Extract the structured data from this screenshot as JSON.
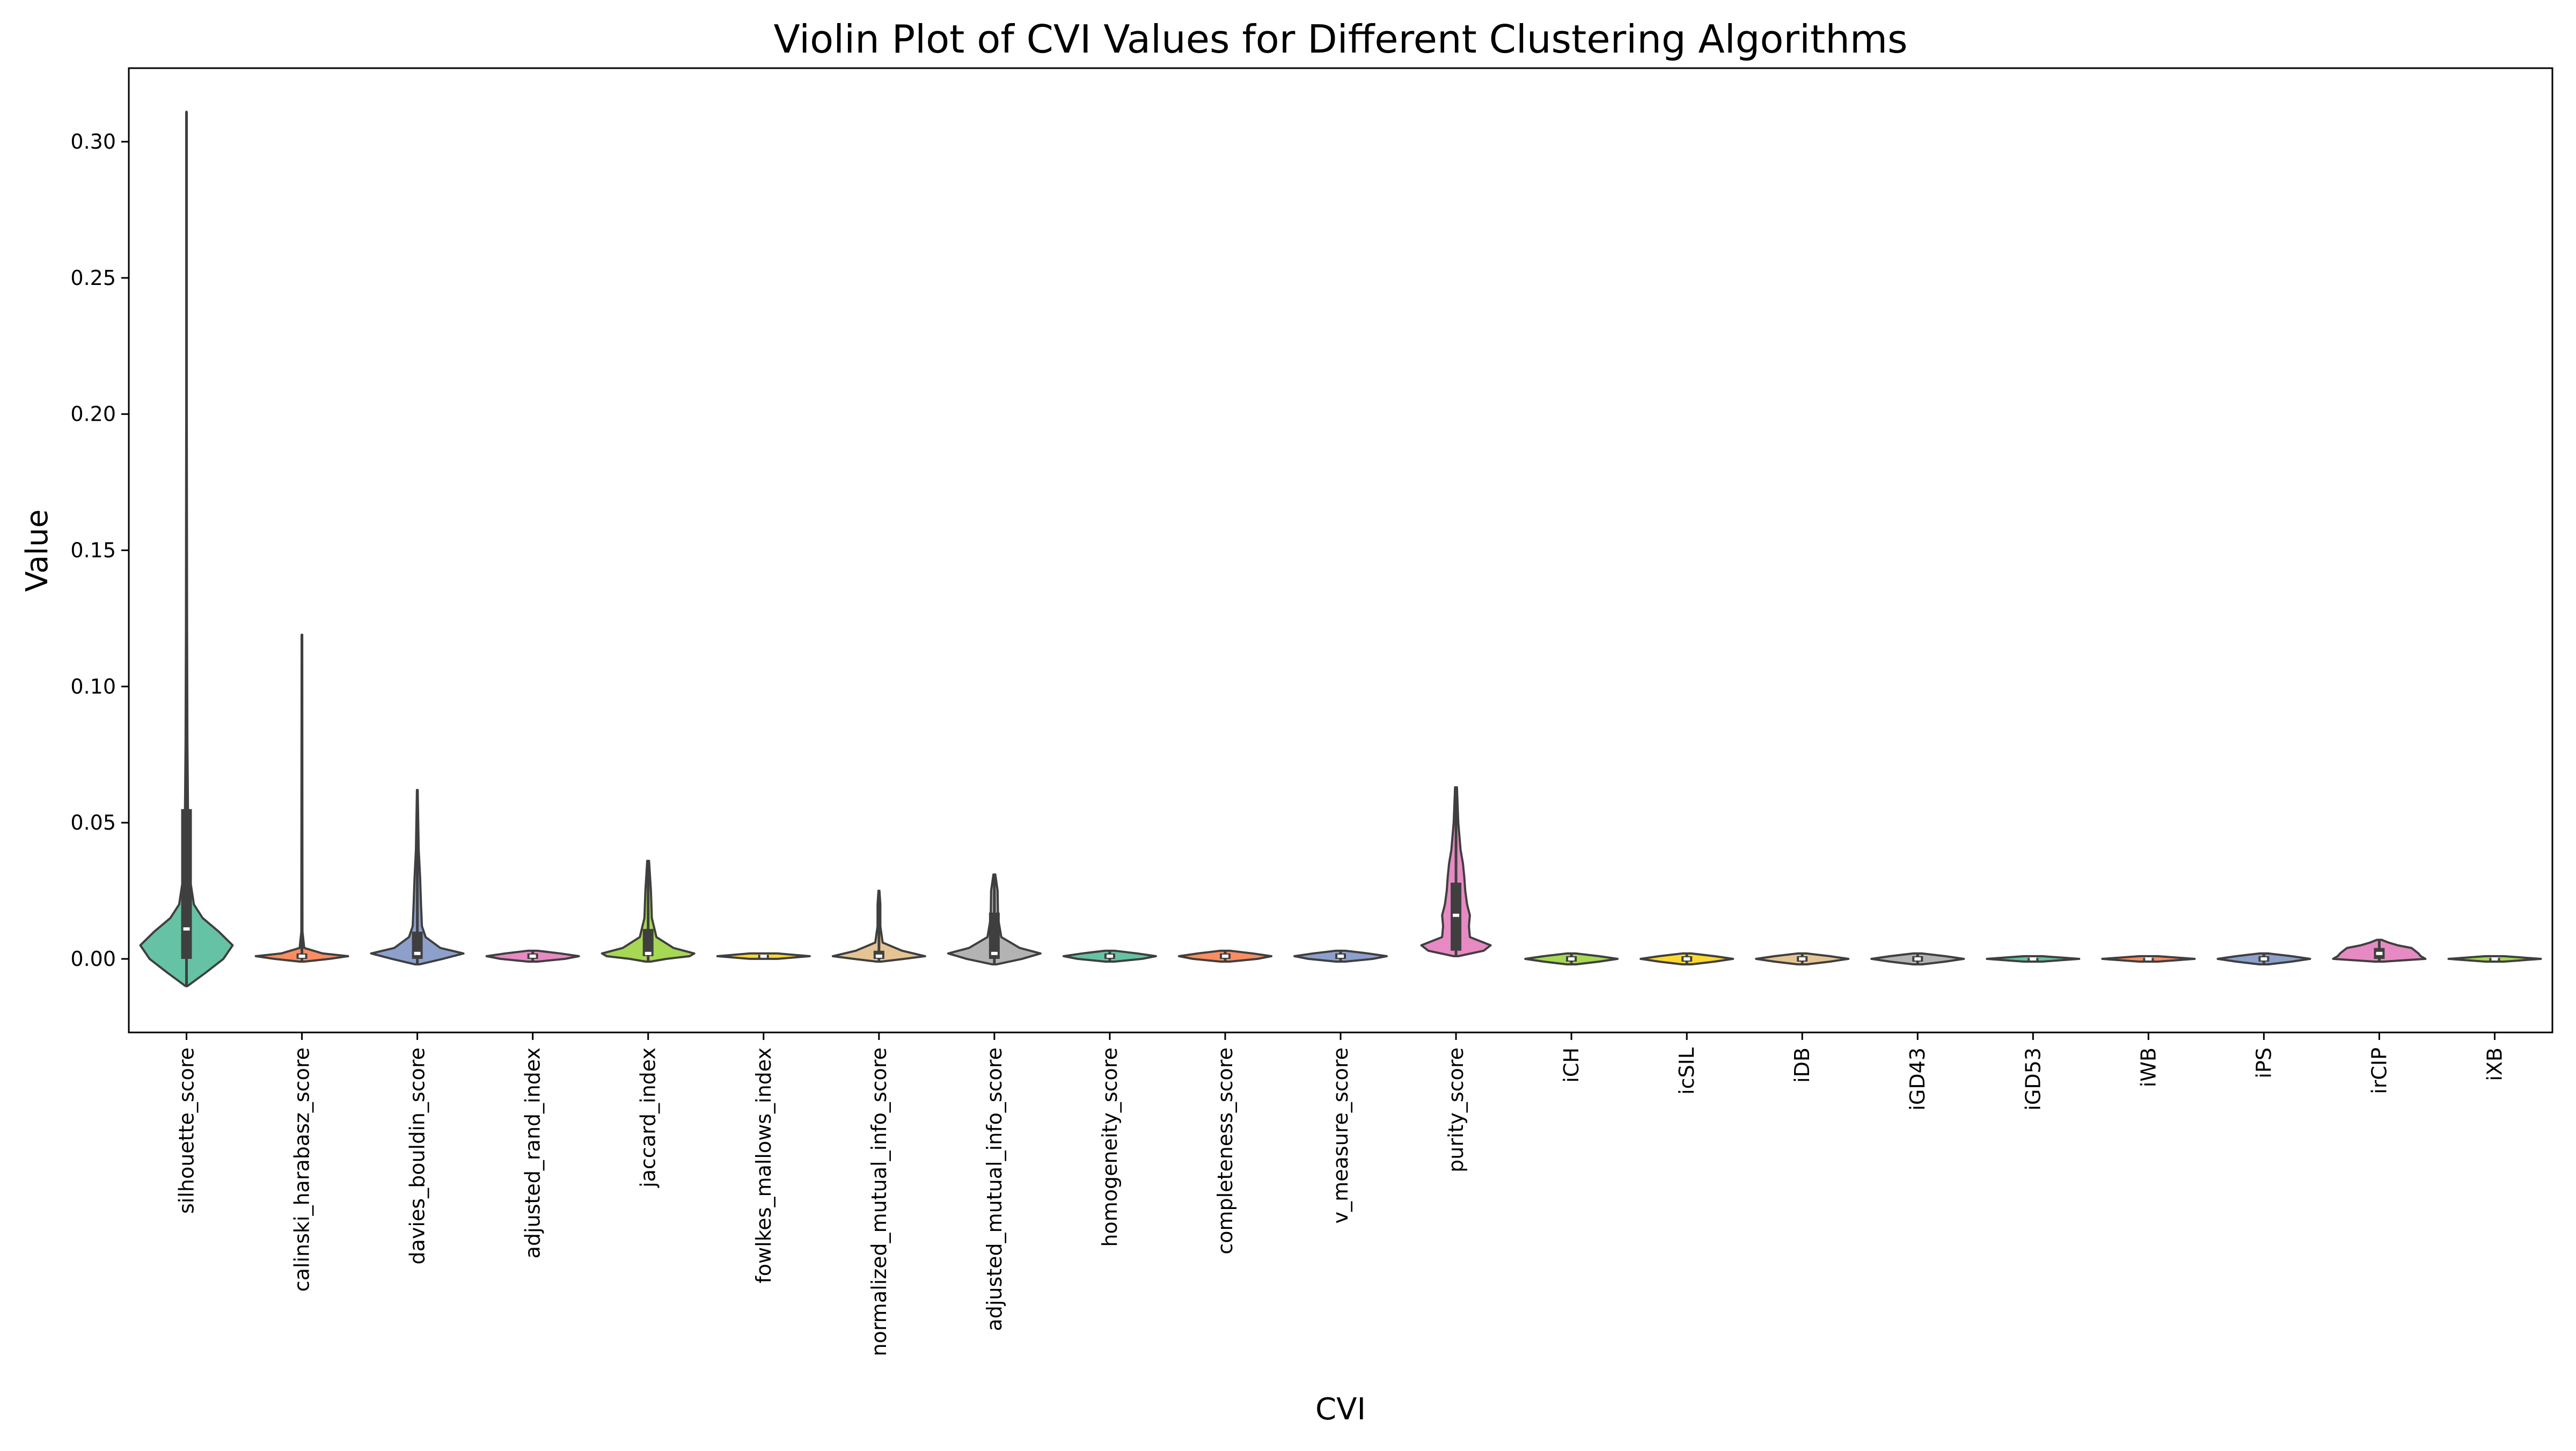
{
  "chart_data": {
    "type": "violin",
    "title": "Violin Plot of CVI Values for Different Clustering Algorithms",
    "xlabel": "CVI",
    "ylabel": "Value",
    "ylim": [
      -0.027,
      0.327
    ],
    "yticks": [
      0.0,
      0.05,
      0.1,
      0.15,
      0.2,
      0.25,
      0.3
    ],
    "ytick_labels": [
      "0.00",
      "0.05",
      "0.10",
      "0.15",
      "0.20",
      "0.25",
      "0.30"
    ],
    "grid": false,
    "legend": "none",
    "categories": [
      "silhouette_score",
      "calinski_harabasz_score",
      "davies_bouldin_score",
      "adjusted_rand_index",
      "jaccard_index",
      "fowlkes_mallows_index",
      "normalized_mutual_info_score",
      "adjusted_mutual_info_score",
      "homogeneity_score",
      "completeness_score",
      "v_measure_score",
      "purity_score",
      "iCH",
      "icSIL",
      "iDB",
      "iGD43",
      "iGD53",
      "iWB",
      "iPS",
      "irCIP",
      "iXB"
    ],
    "colors": [
      "#66c2a5",
      "#fc8d62",
      "#8da0cb",
      "#e78ac3",
      "#a6d854",
      "#ffd92f",
      "#e5c494",
      "#b3b3b3",
      "#66c2a5",
      "#fc8d62",
      "#8da0cb",
      "#e78ac3",
      "#a6d854",
      "#ffd92f",
      "#e5c494",
      "#b3b3b3",
      "#66c2a5",
      "#fc8d62",
      "#8da0cb",
      "#e78ac3",
      "#a6d854"
    ],
    "series": [
      {
        "min": -0.01,
        "max": 0.311,
        "q1": 0.0,
        "median": 0.011,
        "q3": 0.055,
        "profile": [
          [
            -0.01,
            0.02
          ],
          [
            -0.005,
            0.42
          ],
          [
            0.0,
            0.8
          ],
          [
            0.005,
            1.0
          ],
          [
            0.01,
            0.7
          ],
          [
            0.015,
            0.35
          ],
          [
            0.02,
            0.16
          ],
          [
            0.03,
            0.07
          ],
          [
            0.05,
            0.035
          ],
          [
            0.08,
            0.02
          ],
          [
            0.12,
            0.012
          ],
          [
            0.2,
            0.006
          ],
          [
            0.311,
            0.002
          ]
        ]
      },
      {
        "min": -0.001,
        "max": 0.119,
        "q1": 0.0,
        "median": 0.001,
        "q3": 0.002,
        "profile": [
          [
            -0.001,
            0.05
          ],
          [
            0.0,
            0.6
          ],
          [
            0.001,
            1.0
          ],
          [
            0.002,
            0.45
          ],
          [
            0.004,
            0.05
          ],
          [
            0.01,
            0.012
          ],
          [
            0.119,
            0.006
          ]
        ]
      },
      {
        "min": -0.002,
        "max": 0.062,
        "q1": 0.0,
        "median": 0.002,
        "q3": 0.01,
        "profile": [
          [
            -0.002,
            0.05
          ],
          [
            0.0,
            0.55
          ],
          [
            0.002,
            1.0
          ],
          [
            0.004,
            0.5
          ],
          [
            0.008,
            0.18
          ],
          [
            0.012,
            0.1
          ],
          [
            0.02,
            0.08
          ],
          [
            0.03,
            0.06
          ],
          [
            0.04,
            0.03
          ],
          [
            0.062,
            0.008
          ]
        ]
      },
      {
        "min": -0.001,
        "max": 0.003,
        "q1": 0.0,
        "median": 0.001,
        "q3": 0.002,
        "profile": [
          [
            -0.001,
            0.1
          ],
          [
            0.0,
            0.7
          ],
          [
            0.001,
            1.0
          ],
          [
            0.002,
            0.6
          ],
          [
            0.003,
            0.1
          ]
        ]
      },
      {
        "min": -0.001,
        "max": 0.036,
        "q1": 0.001,
        "median": 0.002,
        "q3": 0.011,
        "profile": [
          [
            -0.001,
            0.05
          ],
          [
            0.0,
            0.4
          ],
          [
            0.001,
            0.9
          ],
          [
            0.002,
            1.0
          ],
          [
            0.004,
            0.55
          ],
          [
            0.008,
            0.18
          ],
          [
            0.015,
            0.08
          ],
          [
            0.025,
            0.06
          ],
          [
            0.036,
            0.02
          ]
        ]
      },
      {
        "min": 0.0,
        "max": 0.002,
        "q1": 0.0005,
        "median": 0.001,
        "q3": 0.0015,
        "profile": [
          [
            0.0,
            0.3
          ],
          [
            0.001,
            1.0
          ],
          [
            0.002,
            0.3
          ]
        ]
      },
      {
        "min": -0.001,
        "max": 0.025,
        "q1": 0.0,
        "median": 0.001,
        "q3": 0.003,
        "profile": [
          [
            -0.001,
            0.05
          ],
          [
            0.0,
            0.55
          ],
          [
            0.001,
            1.0
          ],
          [
            0.003,
            0.5
          ],
          [
            0.006,
            0.08
          ],
          [
            0.012,
            0.03
          ],
          [
            0.02,
            0.03
          ],
          [
            0.025,
            0.01
          ]
        ]
      },
      {
        "min": -0.002,
        "max": 0.031,
        "q1": 0.0,
        "median": 0.002,
        "q3": 0.017,
        "profile": [
          [
            -0.002,
            0.05
          ],
          [
            0.0,
            0.6
          ],
          [
            0.002,
            1.0
          ],
          [
            0.004,
            0.55
          ],
          [
            0.008,
            0.15
          ],
          [
            0.015,
            0.08
          ],
          [
            0.025,
            0.07
          ],
          [
            0.031,
            0.02
          ]
        ]
      },
      {
        "min": -0.001,
        "max": 0.003,
        "q1": 0.0,
        "median": 0.001,
        "q3": 0.002,
        "profile": [
          [
            -0.001,
            0.1
          ],
          [
            0.0,
            0.7
          ],
          [
            0.001,
            1.0
          ],
          [
            0.002,
            0.6
          ],
          [
            0.003,
            0.1
          ]
        ]
      },
      {
        "min": -0.001,
        "max": 0.003,
        "q1": 0.0,
        "median": 0.001,
        "q3": 0.002,
        "profile": [
          [
            -0.001,
            0.1
          ],
          [
            0.0,
            0.7
          ],
          [
            0.001,
            1.0
          ],
          [
            0.002,
            0.6
          ],
          [
            0.003,
            0.1
          ]
        ]
      },
      {
        "min": -0.001,
        "max": 0.003,
        "q1": 0.0,
        "median": 0.001,
        "q3": 0.002,
        "profile": [
          [
            -0.001,
            0.1
          ],
          [
            0.0,
            0.7
          ],
          [
            0.001,
            1.0
          ],
          [
            0.002,
            0.6
          ],
          [
            0.003,
            0.1
          ]
        ]
      },
      {
        "min": 0.001,
        "max": 0.063,
        "q1": 0.003,
        "median": 0.016,
        "q3": 0.028,
        "profile": [
          [
            0.001,
            0.05
          ],
          [
            0.003,
            0.6
          ],
          [
            0.005,
            0.75
          ],
          [
            0.008,
            0.3
          ],
          [
            0.012,
            0.28
          ],
          [
            0.016,
            0.3
          ],
          [
            0.02,
            0.24
          ],
          [
            0.025,
            0.2
          ],
          [
            0.03,
            0.18
          ],
          [
            0.035,
            0.15
          ],
          [
            0.04,
            0.1
          ],
          [
            0.05,
            0.05
          ],
          [
            0.063,
            0.02
          ]
        ]
      },
      {
        "min": -0.002,
        "max": 0.002,
        "q1": -0.001,
        "median": 0.0,
        "q3": 0.001,
        "profile": [
          [
            -0.002,
            0.1
          ],
          [
            -0.001,
            0.6
          ],
          [
            0.0,
            1.0
          ],
          [
            0.001,
            0.6
          ],
          [
            0.002,
            0.1
          ]
        ]
      },
      {
        "min": -0.002,
        "max": 0.002,
        "q1": -0.001,
        "median": 0.0,
        "q3": 0.001,
        "profile": [
          [
            -0.002,
            0.1
          ],
          [
            -0.001,
            0.6
          ],
          [
            0.0,
            1.0
          ],
          [
            0.001,
            0.6
          ],
          [
            0.002,
            0.1
          ]
        ]
      },
      {
        "min": -0.002,
        "max": 0.002,
        "q1": -0.001,
        "median": 0.0,
        "q3": 0.001,
        "profile": [
          [
            -0.002,
            0.1
          ],
          [
            -0.001,
            0.6
          ],
          [
            0.0,
            1.0
          ],
          [
            0.001,
            0.6
          ],
          [
            0.002,
            0.1
          ]
        ]
      },
      {
        "min": -0.002,
        "max": 0.002,
        "q1": -0.001,
        "median": 0.0,
        "q3": 0.001,
        "profile": [
          [
            -0.002,
            0.1
          ],
          [
            -0.001,
            0.6
          ],
          [
            0.0,
            1.0
          ],
          [
            0.001,
            0.6
          ],
          [
            0.002,
            0.1
          ]
        ]
      },
      {
        "min": -0.001,
        "max": 0.001,
        "q1": -0.0003,
        "median": 0.0,
        "q3": 0.0003,
        "profile": [
          [
            -0.001,
            0.2
          ],
          [
            0.0,
            1.0
          ],
          [
            0.001,
            0.2
          ]
        ]
      },
      {
        "min": -0.001,
        "max": 0.001,
        "q1": -0.0003,
        "median": 0.0,
        "q3": 0.0003,
        "profile": [
          [
            -0.001,
            0.2
          ],
          [
            0.0,
            1.0
          ],
          [
            0.001,
            0.2
          ]
        ]
      },
      {
        "min": -0.002,
        "max": 0.002,
        "q1": -0.001,
        "median": 0.0,
        "q3": 0.001,
        "profile": [
          [
            -0.002,
            0.1
          ],
          [
            -0.001,
            0.6
          ],
          [
            0.0,
            1.0
          ],
          [
            0.001,
            0.6
          ],
          [
            0.002,
            0.1
          ]
        ]
      },
      {
        "min": -0.001,
        "max": 0.007,
        "q1": 0.0,
        "median": 0.002,
        "q3": 0.004,
        "profile": [
          [
            -0.001,
            0.1
          ],
          [
            0.0,
            1.0
          ],
          [
            0.001,
            0.9
          ],
          [
            0.002,
            0.85
          ],
          [
            0.004,
            0.7
          ],
          [
            0.005,
            0.4
          ],
          [
            0.006,
            0.2
          ],
          [
            0.007,
            0.05
          ]
        ]
      },
      {
        "min": -0.001,
        "max": 0.001,
        "q1": -0.0003,
        "median": 0.0,
        "q3": 0.0003,
        "profile": [
          [
            -0.001,
            0.2
          ],
          [
            0.0,
            1.0
          ],
          [
            0.001,
            0.2
          ]
        ]
      }
    ]
  }
}
